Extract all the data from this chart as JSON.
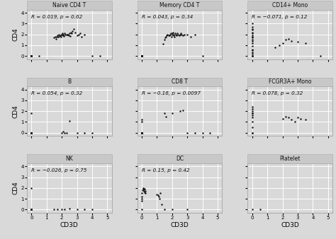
{
  "panels": [
    {
      "title": "Naive CD4 T",
      "R": "R = 0.019, p = 0.62",
      "cd3d": [
        0,
        0,
        0,
        0,
        0,
        0,
        0,
        0,
        0,
        0,
        0.5,
        1.5,
        1.55,
        1.6,
        1.65,
        1.7,
        1.75,
        1.8,
        1.85,
        1.9,
        1.95,
        2.0,
        2.0,
        2.05,
        2.1,
        2.1,
        2.15,
        2.2,
        2.25,
        2.3,
        2.35,
        2.4,
        2.45,
        2.5,
        2.55,
        2.6,
        2.65,
        2.7,
        2.8,
        2.9,
        3.0,
        3.1,
        3.2,
        3.3,
        3.5,
        4.0,
        4.5
      ],
      "cd4": [
        0,
        0,
        0,
        0,
        0,
        0,
        0,
        0,
        0,
        0,
        0,
        1.7,
        1.8,
        1.6,
        1.75,
        1.9,
        1.8,
        2.0,
        1.85,
        1.9,
        1.8,
        1.95,
        2.0,
        2.1,
        2.0,
        1.9,
        1.85,
        2.1,
        2.0,
        2.0,
        1.95,
        2.0,
        1.9,
        2.1,
        1.85,
        2.2,
        2.1,
        2.3,
        2.5,
        2.2,
        1.9,
        2.0,
        2.1,
        1.8,
        2.0,
        0,
        0
      ]
    },
    {
      "title": "Memory CD4 T",
      "R": "R = 0.043, p = 0.34",
      "cd3d": [
        0,
        0,
        0,
        0,
        0,
        0,
        0,
        0,
        0,
        0,
        0,
        0,
        1.4,
        1.5,
        1.55,
        1.6,
        1.65,
        1.7,
        1.75,
        1.8,
        1.85,
        1.9,
        1.95,
        2.0,
        2.0,
        2.05,
        2.1,
        2.1,
        2.15,
        2.2,
        2.25,
        2.3,
        2.35,
        2.4,
        2.45,
        2.5,
        2.55,
        2.6,
        2.7,
        2.8,
        3.0,
        3.2,
        3.5,
        4.0
      ],
      "cd4": [
        0,
        0,
        0,
        0,
        0,
        0,
        0,
        0,
        0,
        0,
        0,
        0,
        1.1,
        1.5,
        1.7,
        1.8,
        1.9,
        2.0,
        1.9,
        1.9,
        2.0,
        2.1,
        1.8,
        2.0,
        2.1,
        2.2,
        1.9,
        2.0,
        1.8,
        2.1,
        2.0,
        1.9,
        2.1,
        2.0,
        1.9,
        2.0,
        2.1,
        2.0,
        1.9,
        2.0,
        2.0,
        1.8,
        2.0,
        0
      ]
    },
    {
      "title": "CD14+ Mono",
      "R": "R = −0.071, p = 0.12",
      "cd3d": [
        0,
        0,
        0,
        0,
        0,
        0,
        0,
        0,
        0,
        0,
        0,
        0,
        0,
        0,
        0,
        0,
        0,
        0,
        0,
        0,
        1.5,
        1.8,
        2.0,
        2.2,
        2.4,
        2.6,
        3.0,
        3.5,
        4.5
      ],
      "cd4": [
        0,
        0.3,
        0.6,
        0.9,
        1.2,
        1.5,
        1.8,
        2.1,
        2.4,
        2.7,
        3.0,
        2.5,
        2.2,
        1.9,
        1.7,
        1.4,
        0.5,
        0.2,
        0,
        0,
        0.8,
        1.0,
        1.2,
        1.5,
        1.6,
        1.4,
        1.3,
        1.2,
        0
      ]
    },
    {
      "title": "B",
      "R": "R = 0.054, p = 0.32",
      "cd3d": [
        0,
        0,
        0,
        0,
        0,
        0,
        0,
        0,
        0,
        0,
        2.0,
        2.1,
        2.2,
        2.3,
        2.5,
        3.0,
        3.5,
        4.0
      ],
      "cd4": [
        0,
        0,
        0,
        0,
        0,
        0,
        0,
        0,
        0,
        1.8,
        0,
        0.1,
        0,
        0,
        1.1,
        0,
        0,
        0
      ]
    },
    {
      "title": "CD8 T",
      "R": "R = −0.16, p = 0.0097",
      "cd3d": [
        0,
        0,
        0,
        0,
        0,
        0,
        0,
        0,
        0,
        0,
        0,
        0,
        0,
        0,
        0,
        0,
        0,
        0,
        0,
        0,
        0,
        0,
        0,
        0,
        0,
        1.5,
        1.6,
        2.0,
        2.5,
        2.7,
        3.0,
        3.5,
        4.0,
        4.5
      ],
      "cd4": [
        0,
        0,
        0,
        0,
        0,
        0,
        0,
        0,
        0,
        0,
        0,
        0,
        0,
        0,
        0,
        0,
        0,
        0,
        0,
        0,
        0,
        0,
        0,
        1.2,
        1.0,
        1.8,
        1.5,
        1.8,
        2.0,
        2.1,
        0,
        0,
        0,
        0
      ]
    },
    {
      "title": "FCGR3A+ Mono",
      "R": "R = 0.078, p = 0.32",
      "cd3d": [
        0,
        0,
        0,
        0,
        0,
        0,
        0,
        0,
        0,
        0,
        0,
        2.0,
        2.2,
        2.4,
        2.6,
        2.8,
        3.0,
        3.2,
        3.5
      ],
      "cd4": [
        0,
        0.5,
        1.0,
        1.4,
        1.6,
        1.8,
        2.0,
        2.2,
        2.4,
        1.8,
        0,
        1.3,
        1.5,
        1.4,
        1.2,
        1.0,
        1.4,
        1.3,
        1.2
      ]
    },
    {
      "title": "NK",
      "R": "R = −0.026, p = 0.75",
      "cd3d": [
        0,
        0,
        0,
        0,
        0,
        0,
        0,
        1.5,
        1.7,
        2.0,
        2.2,
        2.5,
        3.0,
        3.5,
        4.0
      ],
      "cd4": [
        0,
        0,
        0,
        0,
        0,
        2.0,
        0,
        0,
        0,
        0,
        0,
        0.1,
        0,
        0,
        0
      ]
    },
    {
      "title": "DC",
      "R": "R = 0.15, p = 0.42",
      "cd3d": [
        0,
        0,
        0,
        0,
        0,
        0.05,
        0.08,
        0.1,
        0.12,
        0.15,
        0.18,
        0.2,
        0.22,
        0.25,
        1.0,
        1.05,
        1.1,
        1.15,
        1.2,
        1.3,
        1.5,
        2.0,
        3.0
      ],
      "cd4": [
        0,
        0.8,
        1.0,
        1.2,
        1.5,
        1.8,
        1.9,
        2.0,
        1.85,
        1.7,
        1.9,
        1.6,
        1.75,
        1.5,
        1.4,
        1.3,
        1.2,
        1.0,
        1.5,
        0.5,
        0,
        0,
        0
      ]
    },
    {
      "title": "Platelet",
      "R": "",
      "cd3d": [
        0,
        0.5
      ],
      "cd4": [
        0,
        0
      ]
    }
  ],
  "xlabel": "CD3D",
  "ylabel": "CD4",
  "xlim": [
    -0.3,
    5.3
  ],
  "ylim": [
    -0.3,
    4.3
  ],
  "xticks": [
    0,
    1,
    2,
    3,
    4,
    5
  ],
  "yticks": [
    0,
    1,
    2,
    3,
    4
  ],
  "bg_color": "#d9d9d9",
  "plot_bg": "#d9d9d9",
  "grid_color": "#ffffff",
  "title_bg": "#c8c8c8",
  "dot_color": "#111111",
  "dot_size": 3,
  "font_color": "#222222"
}
